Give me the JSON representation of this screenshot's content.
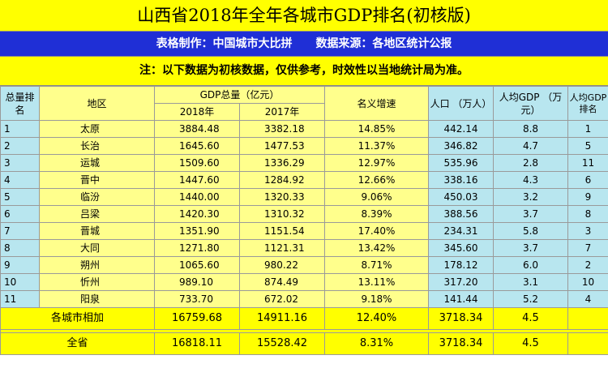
{
  "title": "山西省2018年全年各城市GDP排名(初核版)",
  "credit": {
    "maker": "表格制作：中国城市大比拼",
    "source": "数据来源：各地区统计公报"
  },
  "note": "注：以下数据为初核数据，仅供参考，时效性以当地统计局为准。",
  "header": {
    "rank": "总量排名",
    "region": "地区",
    "gdp": "GDP总量（亿元）",
    "y2018": "2018年",
    "y2017": "2017年",
    "growth": "名义增速",
    "population": "人口 （万人）",
    "per_capita": "人均GDP （万元）",
    "per_capita_rank": "人均GDP排名"
  },
  "rows": [
    {
      "rank": "1",
      "region": "太原",
      "gdp2018": "3884.48",
      "gdp2017": "3382.18",
      "growth": "14.85%",
      "population": "442.14",
      "per_capita": "8.8",
      "pc_rank": "1"
    },
    {
      "rank": "2",
      "region": "长治",
      "gdp2018": "1645.60",
      "gdp2017": "1477.53",
      "growth": "11.37%",
      "population": "346.82",
      "per_capita": "4.7",
      "pc_rank": "5"
    },
    {
      "rank": "3",
      "region": "运城",
      "gdp2018": "1509.60",
      "gdp2017": "1336.29",
      "growth": "12.97%",
      "population": "535.96",
      "per_capita": "2.8",
      "pc_rank": "11"
    },
    {
      "rank": "4",
      "region": "晋中",
      "gdp2018": "1447.60",
      "gdp2017": "1284.92",
      "growth": "12.66%",
      "population": "338.16",
      "per_capita": "4.3",
      "pc_rank": "6"
    },
    {
      "rank": "5",
      "region": "临汾",
      "gdp2018": "1440.00",
      "gdp2017": "1320.33",
      "growth": "9.06%",
      "population": "450.03",
      "per_capita": "3.2",
      "pc_rank": "9"
    },
    {
      "rank": "6",
      "region": "吕梁",
      "gdp2018": "1420.30",
      "gdp2017": "1310.32",
      "growth": "8.39%",
      "population": "388.56",
      "per_capita": "3.7",
      "pc_rank": "8"
    },
    {
      "rank": "7",
      "region": "晋城",
      "gdp2018": "1351.90",
      "gdp2017": "1151.54",
      "growth": "17.40%",
      "population": "234.31",
      "per_capita": "5.8",
      "pc_rank": "3"
    },
    {
      "rank": "8",
      "region": "大同",
      "gdp2018": "1271.80",
      "gdp2017": "1121.31",
      "growth": "13.42%",
      "population": "345.60",
      "per_capita": "3.7",
      "pc_rank": "7"
    },
    {
      "rank": "9",
      "region": "朔州",
      "gdp2018": "1065.60",
      "gdp2017": "980.22",
      "growth": "8.71%",
      "population": "178.12",
      "per_capita": "6.0",
      "pc_rank": "2"
    },
    {
      "rank": "10",
      "region": "忻州",
      "gdp2018": "989.10",
      "gdp2017": "874.49",
      "growth": "13.11%",
      "population": "317.20",
      "per_capita": "3.1",
      "pc_rank": "10"
    },
    {
      "rank": "11",
      "region": "阳泉",
      "gdp2018": "733.70",
      "gdp2017": "672.02",
      "growth": "9.18%",
      "population": "141.44",
      "per_capita": "5.2",
      "pc_rank": "4"
    }
  ],
  "totals": [
    {
      "label": "各城市相加",
      "gdp2018": "16759.68",
      "gdp2017": "14911.16",
      "growth": "12.40%",
      "population": "3718.34",
      "per_capita": "4.5"
    },
    {
      "label": "全省",
      "gdp2018": "16818.11",
      "gdp2017": "15528.42",
      "growth": "8.31%",
      "population": "3718.34",
      "per_capita": "4.5"
    }
  ],
  "colors": {
    "title_bg": "#ffff00",
    "credit_bg": "#1f2fd6",
    "header_blue": "#b8e6ef",
    "header_yellow": "#ffff8c",
    "total_bg": "#ffff00"
  }
}
